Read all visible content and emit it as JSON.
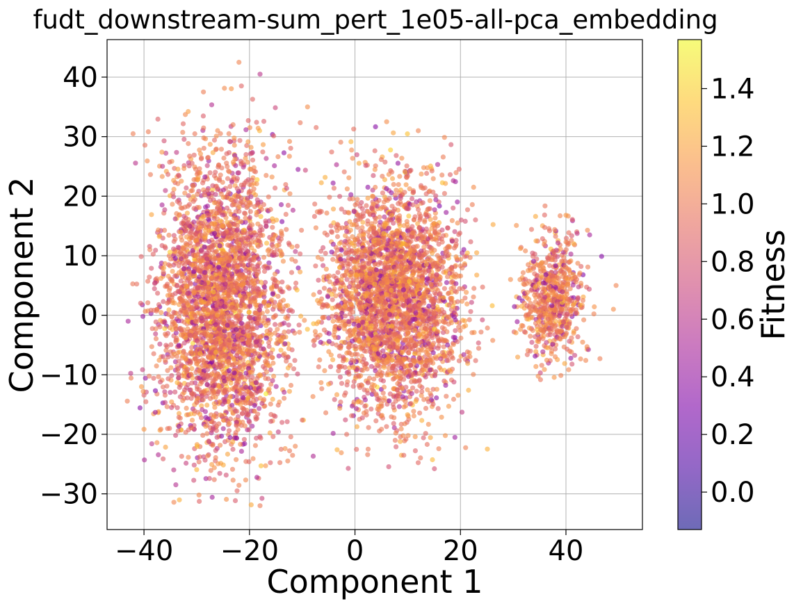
{
  "chart_data": {
    "type": "scatter",
    "title": "fudt_downstream-sum_pert_1e05-all-pca_embedding",
    "xlabel": "Component 1",
    "ylabel": "Component 2",
    "xlim": [
      -47,
      54.5
    ],
    "ylim": [
      -36,
      46.3
    ],
    "xticks": [
      -40,
      -20,
      0,
      20,
      40
    ],
    "yticks": [
      -30,
      -20,
      -10,
      0,
      10,
      20,
      30,
      40
    ],
    "xtick_labels": [
      "−40",
      "−20",
      "0",
      "20",
      "40"
    ],
    "ytick_labels": [
      "−30",
      "−20",
      "−10",
      "0",
      "10",
      "20",
      "30",
      "40"
    ],
    "grid": true,
    "colormap": "plasma",
    "colorbar": {
      "label": "Fitness",
      "range": [
        -0.13,
        1.57
      ],
      "ticks": [
        0.0,
        0.2,
        0.4,
        0.6,
        0.8,
        1.0,
        1.2,
        1.4
      ],
      "tick_labels": [
        "0.0",
        "0.2",
        "0.4",
        "0.6",
        "0.8",
        "1.0",
        "1.2",
        "1.4"
      ]
    },
    "point_alpha": 0.6,
    "clusters": [
      {
        "center": [
          -25.5,
          1.5
        ],
        "spread": [
          6.0,
          14.5
        ],
        "x_range": [
          -43.5,
          -9
        ],
        "y_range": [
          -32,
          42.5
        ],
        "fitness_mean": 0.98,
        "fitness_sd": 0.22
      },
      {
        "center": [
          7.0,
          3.0
        ],
        "spread": [
          6.5,
          11.5
        ],
        "x_range": [
          -8,
          27
        ],
        "y_range": [
          -26,
          33
        ],
        "fitness_mean": 1.0,
        "fitness_sd": 0.2
      },
      {
        "center": [
          37.5,
          2.5
        ],
        "spread": [
          3.0,
          6.5
        ],
        "x_range": [
          30,
          50
        ],
        "y_range": [
          -12,
          18.5
        ],
        "fitness_mean": 1.02,
        "fitness_sd": 0.18
      }
    ],
    "outliers": [
      {
        "x": -43,
        "y": -1,
        "fitness": 0.5
      },
      {
        "x": -9,
        "y": 35,
        "fitness": 1.1
      },
      {
        "x": -18,
        "y": 40.5,
        "fitness": 0.6
      },
      {
        "x": -22,
        "y": 42.5,
        "fitness": 1.05
      },
      {
        "x": -18,
        "y": -32,
        "fitness": 1.0
      },
      {
        "x": 49.5,
        "y": 5,
        "fitness": 1.05
      },
      {
        "x": 49,
        "y": 1,
        "fitness": 1.1
      },
      {
        "x": 44.5,
        "y": 13.5,
        "fitness": 0.5
      },
      {
        "x": 22.5,
        "y": 21.5,
        "fitness": 1.1
      },
      {
        "x": 29.5,
        "y": 6,
        "fitness": 1.1
      },
      {
        "x": 6,
        "y": 32.5,
        "fitness": 1.1
      },
      {
        "x": 12,
        "y": 31,
        "fitness": 1.05
      }
    ]
  }
}
